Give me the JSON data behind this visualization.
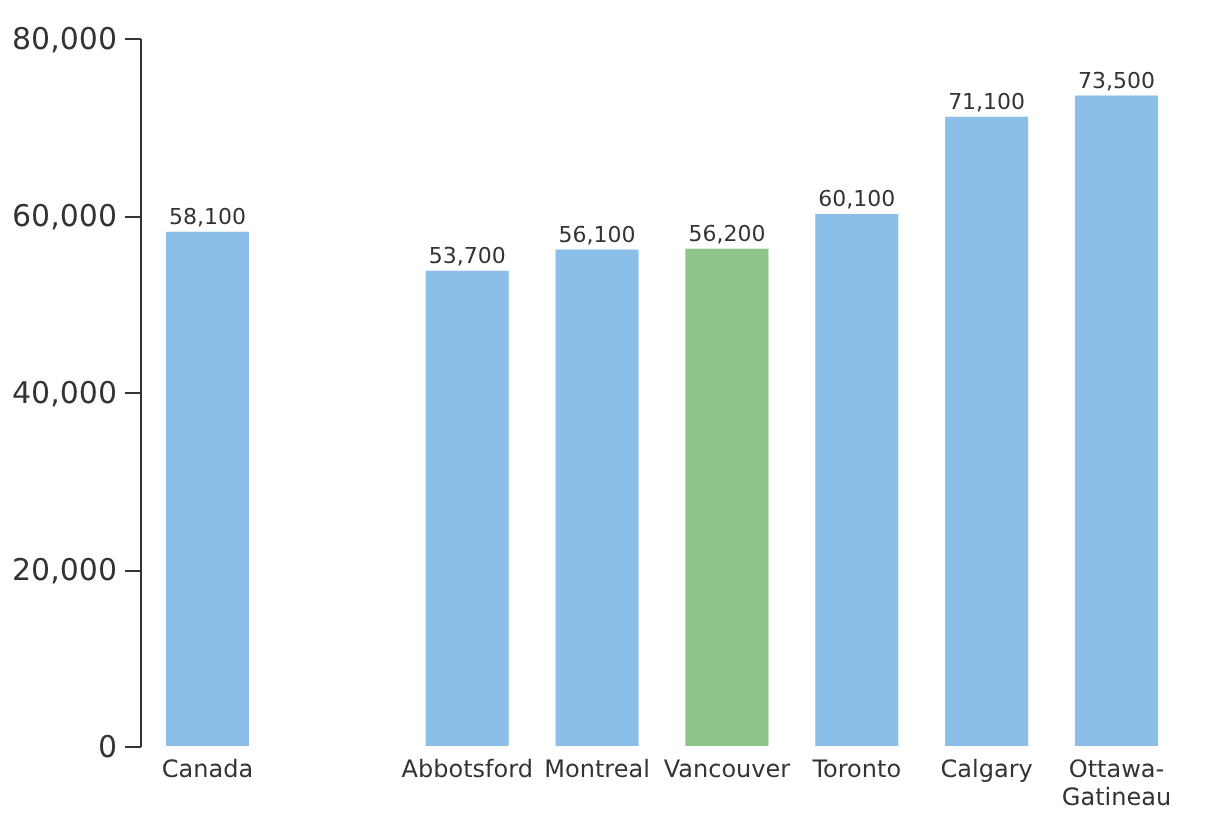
{
  "chart_data": {
    "type": "bar",
    "categories": [
      "Canada",
      null,
      "Abbotsford",
      "Montreal",
      "Vancouver",
      "Toronto",
      "Calgary",
      "Ottawa-Gatineau"
    ],
    "values": [
      58100,
      null,
      53700,
      56100,
      56200,
      60100,
      71100,
      73500
    ],
    "colors": [
      "#8bbfe9",
      "#8bbfe9",
      "#8bbfe9",
      "#8bbfe9",
      "#8cc48a",
      "#8bbfe9",
      "#8bbfe9",
      "#8bbfe9"
    ],
    "ylim": [
      0,
      80000
    ],
    "yticks": [
      {
        "value": 0,
        "label": "0"
      },
      {
        "value": 20000,
        "label": "20,000"
      },
      {
        "value": 40000,
        "label": "40,000"
      },
      {
        "value": 60000,
        "label": "60,000"
      },
      {
        "value": 80000,
        "label": "80,000"
      }
    ],
    "value_labels": [
      "58,100",
      null,
      "53,700",
      "56,100",
      "56,200",
      "60,100",
      "71,100",
      "73,500"
    ],
    "grid": false
  }
}
